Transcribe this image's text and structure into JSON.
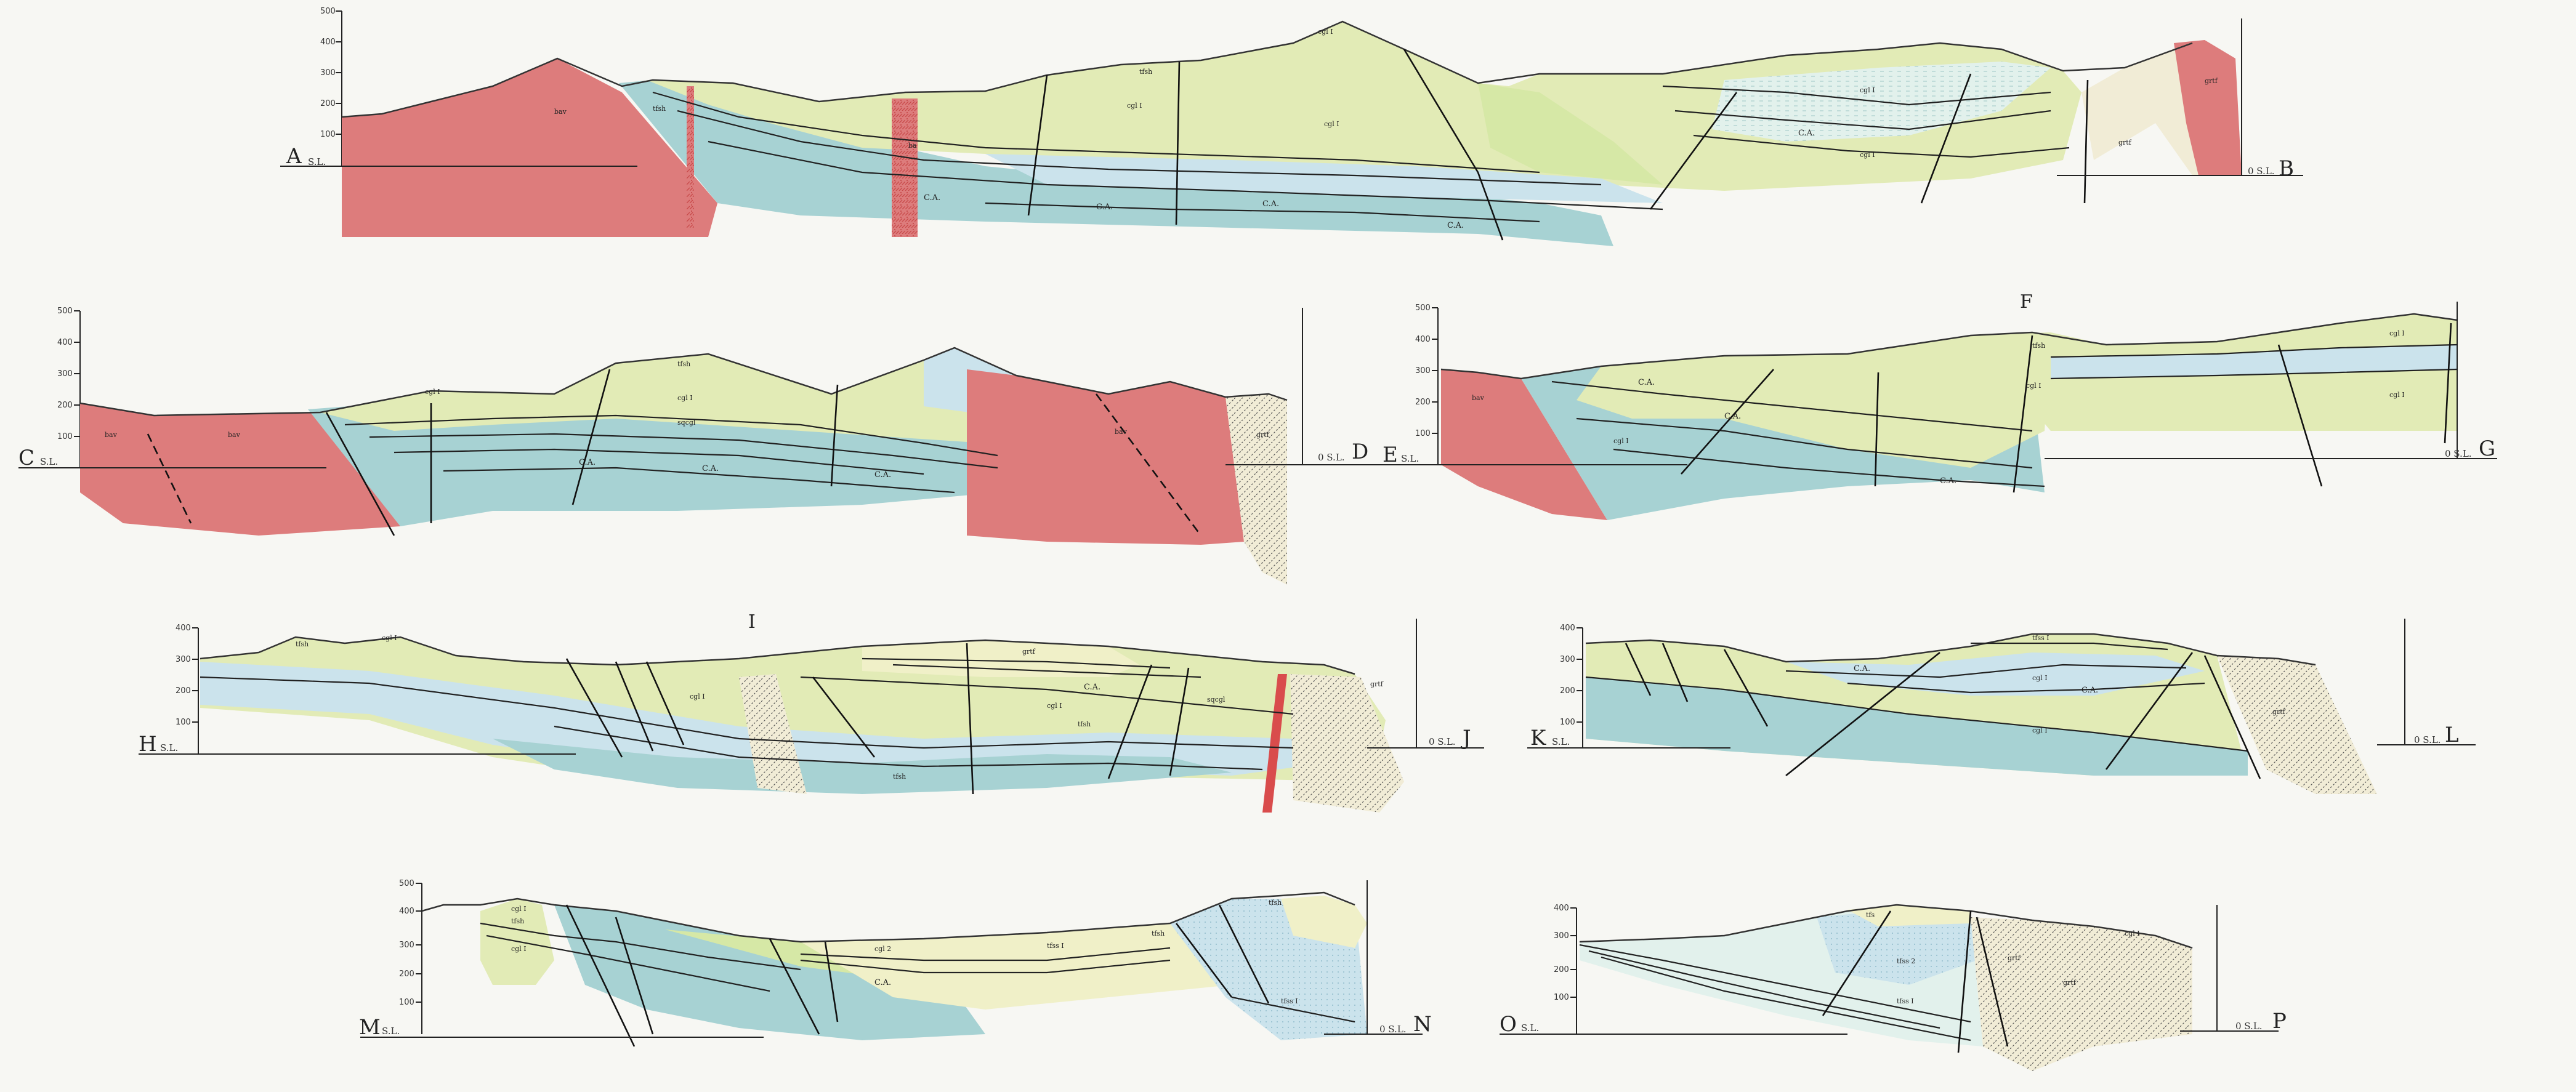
{
  "figure": {
    "description_free": true,
    "colors": {
      "red_igneous": "#dd7c7c",
      "red_hatch": "#c84a4a",
      "light_blue": "#cbe3ec",
      "teal": "#a7d2d3",
      "yellow_green": "#e2ebb6",
      "pale_yellow": "#f0f0c8",
      "light_green": "#d6e8a6",
      "pale_cyan": "#e2f1ec",
      "line": "#222222"
    }
  },
  "scale_ticks": {
    "t500": "500",
    "t400": "400",
    "t300": "300",
    "t200": "200",
    "t100": "100",
    "t0": "0",
    "sl": "S.L.",
    "zero_sl": "0 S.L."
  },
  "sections": {
    "AB": {
      "left": "A",
      "right": "B"
    },
    "CD": {
      "left": "C",
      "right": "D"
    },
    "EG": {
      "left": "E",
      "right": "G"
    },
    "HJ": {
      "left": "H",
      "right": "J"
    },
    "KL": {
      "left": "K",
      "right": "L"
    },
    "MN": {
      "left": "M",
      "right": "N"
    },
    "OP": {
      "left": "O",
      "right": "P"
    }
  },
  "letters": {
    "F": "F",
    "I": "I"
  },
  "units": {
    "bav": "bav",
    "tfsh": "tfsh",
    "cgl1": "cgl I",
    "tfss1": "tfss I",
    "ca": "C.A.",
    "grtf": "grtf",
    "sqcgl": "sqcgl",
    "cgl2": "cgl 2",
    "tfss2": "tfss 2",
    "tfs": "tfs",
    "ba": "ba"
  }
}
